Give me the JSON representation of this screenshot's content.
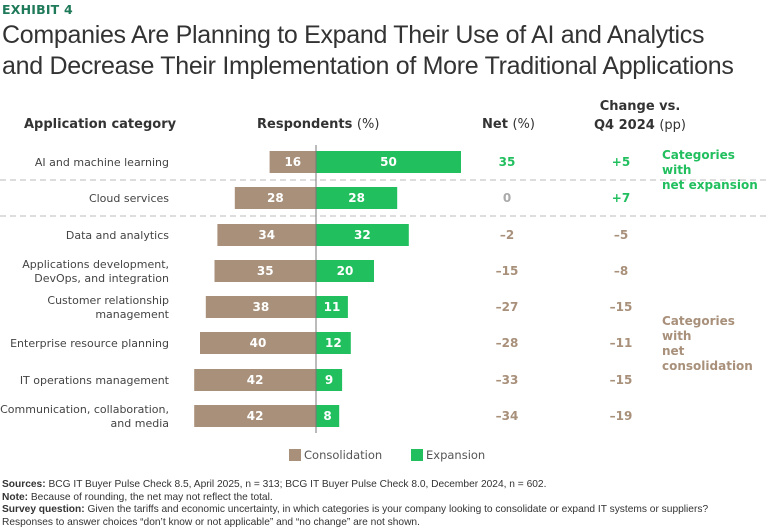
{
  "exhibit_label": "EXHIBIT 4",
  "title_line1": "Companies Are Planning to Expand Their Use of AI and Analytics",
  "title_line2": "and Decrease Their Implementation of More Traditional Applications",
  "headers": {
    "category": "Application category",
    "respondents": "Respondents",
    "respondents_unit": "(%)",
    "net": "Net",
    "net_unit": "(%)",
    "change_line1": "Change vs.",
    "change_line2": "Q4 2024",
    "change_unit": "(pp)"
  },
  "group_labels": {
    "expansion_line1": "Categories with",
    "expansion_line2": "net expansion",
    "consolidation_line1": "Categories with",
    "consolidation_line2": "net consolidation"
  },
  "legend": {
    "consolidation": "Consolidation",
    "expansion": "Expansion"
  },
  "colors": {
    "consolidation": "#a8907a",
    "expansion": "#22bf5f",
    "neutral": "#aaaaaa",
    "exhibit": "#1f7a5a"
  },
  "footnotes": {
    "sources_label": "Sources:",
    "sources": "BCG IT Buyer Pulse Check 8.5, April 2025, n = 313; BCG IT Buyer Pulse Check 8.0, December 2024, n = 602.",
    "note_label": "Note:",
    "note": "Because of rounding, the net may not reflect the total.",
    "survey_label": "Survey question:",
    "survey": "Given the tariffs and economic uncertainty, in which categories is your company looking to consolidate or expand IT systems or suppliers?",
    "responses": "Responses to answer choices “don’t know or not applicable” and “no change” are not shown."
  },
  "chart_data": {
    "type": "bar",
    "orientation": "horizontal-diverging",
    "title": "Companies Are Planning to Expand Their Use of AI and Analytics and Decrease Their Implementation of More Traditional Applications",
    "xlabel": "Respondents (%)",
    "ylabel": "Application category",
    "categories": [
      [
        "AI and machine learning"
      ],
      [
        "Cloud services"
      ],
      [
        "Data and analytics"
      ],
      [
        "Applications development,",
        "DevOps, and integration"
      ],
      [
        "Customer relationship",
        "management"
      ],
      [
        "Enterprise resource planning"
      ],
      [
        "IT operations management"
      ],
      [
        "Communication, collaboration,",
        "and media"
      ]
    ],
    "series": [
      {
        "name": "Consolidation",
        "values": [
          16,
          28,
          34,
          35,
          38,
          40,
          42,
          42
        ]
      },
      {
        "name": "Expansion",
        "values": [
          50,
          28,
          32,
          20,
          11,
          12,
          9,
          8
        ]
      }
    ],
    "net": [
      "35",
      "0",
      "–2",
      "–15",
      "–27",
      "–28",
      "–33",
      "–34"
    ],
    "change_vs_q4_2024": [
      "+5",
      "+7",
      "–5",
      "–8",
      "–15",
      "–11",
      "–15",
      "–19"
    ],
    "groups": [
      {
        "label": "Categories with net expansion",
        "rows": [
          0
        ]
      },
      {
        "label": "Categories with net consolidation",
        "rows": [
          2,
          3,
          4,
          5,
          6,
          7
        ]
      }
    ],
    "legend_position": "bottom-center"
  }
}
